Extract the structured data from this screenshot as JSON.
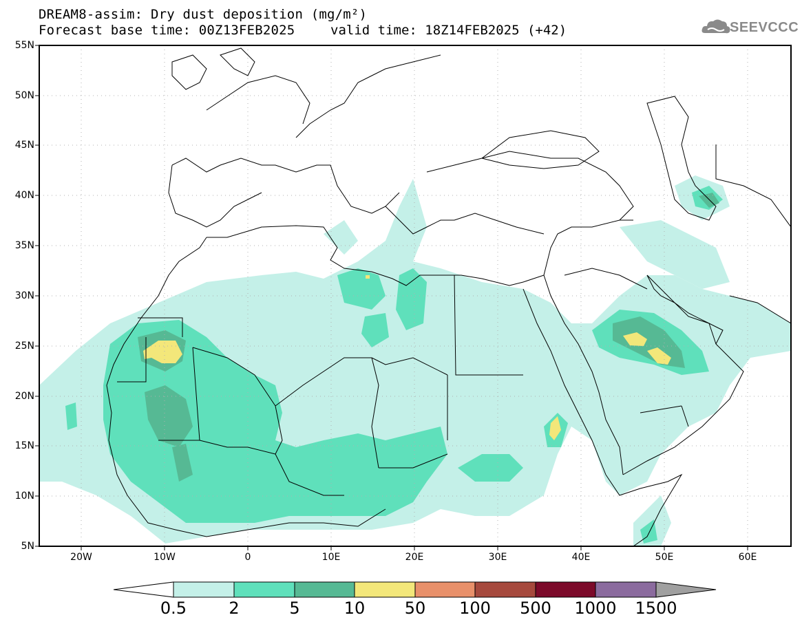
{
  "header": {
    "title_line1": "DREAM8-assim: Dry dust deposition (mg/m²)",
    "title_line2": "Forecast base time: 00Z13FEB2025",
    "valid_time": "valid time: 18Z14FEB2025 (+42)",
    "logo_text": "SEEVCCC",
    "logo_icon": "cloud-logo-icon"
  },
  "map": {
    "lat_labels": [
      "55N",
      "50N",
      "45N",
      "40N",
      "35N",
      "30N",
      "25N",
      "20N",
      "15N",
      "10N",
      "5N"
    ],
    "lon_labels": [
      "20W",
      "10W",
      "0",
      "10E",
      "20E",
      "30E",
      "40E",
      "50E",
      "60E"
    ],
    "grid": true
  },
  "colorbar": {
    "levels": [
      "0.5",
      "2",
      "5",
      "10",
      "50",
      "100",
      "500",
      "1000",
      "1500"
    ],
    "colors": [
      "#ffffff",
      "#c4f0e8",
      "#5fe0bb",
      "#56b994",
      "#f3e77a",
      "#e8906a",
      "#a6493d",
      "#7c0a2a",
      "#8b6b9e",
      "#a0a0a0"
    ]
  }
}
